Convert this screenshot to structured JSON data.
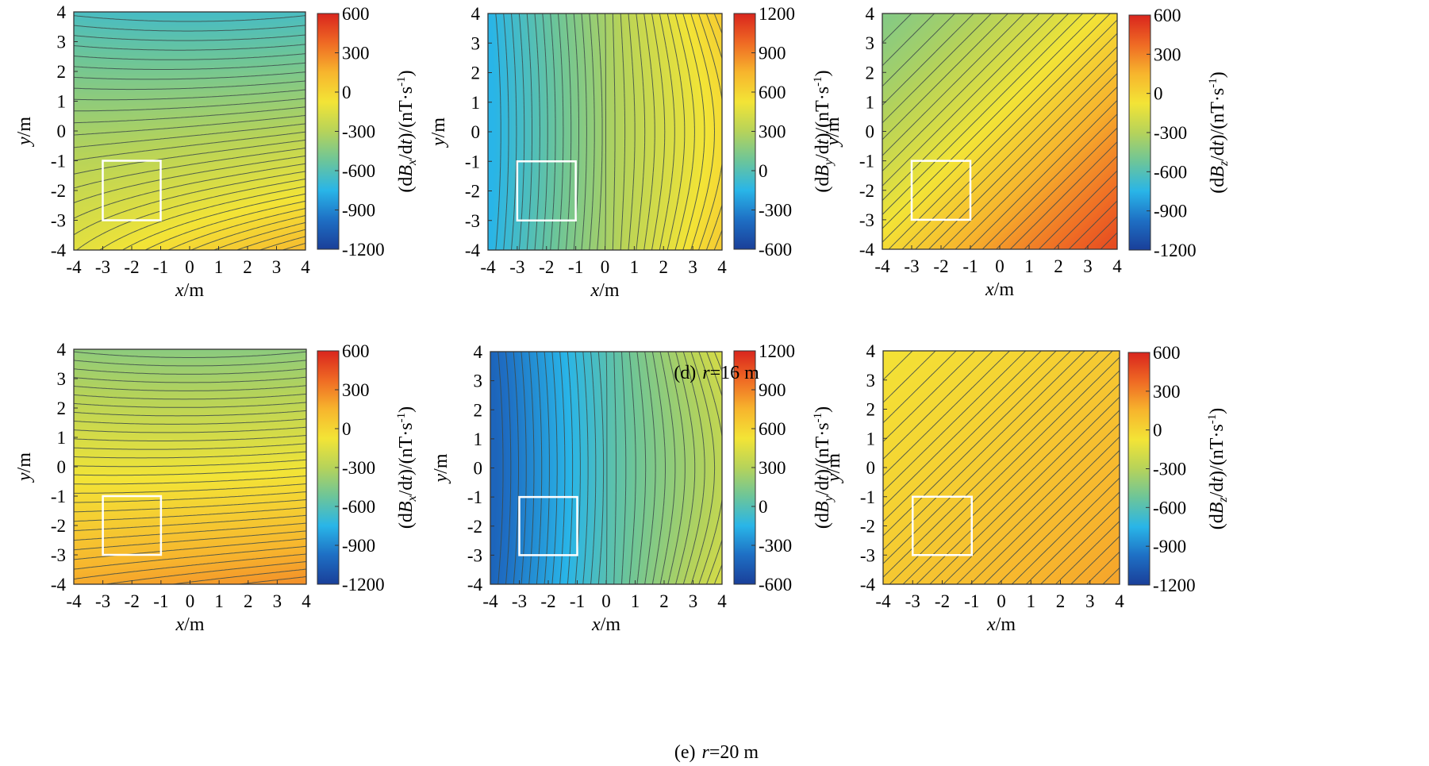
{
  "chart_data": [
    {
      "id": "d-x",
      "type": "heatmap",
      "xlabel": "x/m",
      "ylabel": "y/m",
      "xlim": [
        -4,
        4
      ],
      "ylim": [
        -4,
        4
      ],
      "x_ticks": [
        "-4",
        "-3",
        "-2",
        "-1",
        "0",
        "1",
        "2",
        "3",
        "4"
      ],
      "y_ticks": [
        "-4",
        "-3",
        "-2",
        "-1",
        "0",
        "1",
        "2",
        "3",
        "4"
      ],
      "colorbar": {
        "label": "(dBx/dt)/(nT·s-1)",
        "range": [
          -1200,
          600
        ],
        "ticks": [
          "-1200",
          "-900",
          "-600",
          "-300",
          "0",
          "300",
          "600"
        ]
      },
      "field": {
        "pattern": "horizontal",
        "value_top": -650,
        "value_bottom": -10,
        "value_at_top_left": -560,
        "value_at_bottom_right": 120
      },
      "contours": 30,
      "box": {
        "x": [
          -3,
          -1
        ],
        "y": [
          -3,
          -1
        ]
      }
    },
    {
      "id": "d-y",
      "type": "heatmap",
      "xlabel": "x/m",
      "ylabel": "y/m",
      "xlim": [
        -4,
        4
      ],
      "ylim": [
        -4,
        4
      ],
      "x_ticks": [
        "-4",
        "-3",
        "-2",
        "-1",
        "0",
        "1",
        "2",
        "3",
        "4"
      ],
      "y_ticks": [
        "-4",
        "-3",
        "-2",
        "-1",
        "0",
        "1",
        "2",
        "3",
        "4"
      ],
      "colorbar": {
        "label": "(dBy/dt)/(nT·s-1)",
        "range": [
          -600,
          1200
        ],
        "ticks": [
          "-600",
          "-300",
          "0",
          "300",
          "600",
          "900",
          "1200"
        ]
      },
      "field": {
        "pattern": "vertical-curved",
        "value_left": -150,
        "value_right": 650
      },
      "contours": 30,
      "box": {
        "x": [
          -3,
          -1
        ],
        "y": [
          -3,
          -1
        ]
      }
    },
    {
      "id": "d-z",
      "type": "heatmap",
      "xlabel": "x/m",
      "ylabel": "y/m",
      "xlim": [
        -4,
        4
      ],
      "ylim": [
        -4,
        4
      ],
      "x_ticks": [
        "-4",
        "-3",
        "-2",
        "-1",
        "0",
        "1",
        "2",
        "3",
        "4"
      ],
      "y_ticks": [
        "-4",
        "-3",
        "-2",
        "-1",
        "0",
        "1",
        "2",
        "3",
        "4"
      ],
      "colorbar": {
        "label": "(dBz/dt)/(nT·s-1)",
        "range": [
          -1200,
          600
        ],
        "ticks": [
          "-1200",
          "-900",
          "-600",
          "-300",
          "0",
          "300",
          "600"
        ]
      },
      "field": {
        "pattern": "diagonal",
        "value_top_left": -450,
        "value_bottom_right": 480
      },
      "contours": 30,
      "box": {
        "x": [
          -3,
          -1
        ],
        "y": [
          -3,
          -1
        ]
      }
    },
    {
      "id": "e-x",
      "type": "heatmap",
      "xlabel": "x/m",
      "ylabel": "y/m",
      "xlim": [
        -4,
        4
      ],
      "ylim": [
        -4,
        4
      ],
      "x_ticks": [
        "-4",
        "-3",
        "-2",
        "-1",
        "0",
        "1",
        "2",
        "3",
        "4"
      ],
      "y_ticks": [
        "-4",
        "-3",
        "-2",
        "-1",
        "0",
        "1",
        "2",
        "3",
        "4"
      ],
      "colorbar": {
        "label": "(dBx/dt)/(nT·s-1)",
        "range": [
          -1200,
          600
        ],
        "ticks": [
          "-1200",
          "-900",
          "-600",
          "-300",
          "0",
          "300",
          "600"
        ]
      },
      "field": {
        "pattern": "horizontal",
        "value_top": -430,
        "value_bottom": 220,
        "value_at_top_left": -400,
        "value_at_bottom_right": 260
      },
      "contours": 30,
      "box": {
        "x": [
          -3,
          -1
        ],
        "y": [
          -3,
          -1
        ]
      }
    },
    {
      "id": "e-y",
      "type": "heatmap",
      "xlabel": "x/m",
      "ylabel": "y/m",
      "xlim": [
        -4,
        4
      ],
      "ylim": [
        -4,
        4
      ],
      "x_ticks": [
        "-4",
        "-3",
        "-2",
        "-1",
        "0",
        "1",
        "2",
        "3",
        "4"
      ],
      "y_ticks": [
        "-4",
        "-3",
        "-2",
        "-1",
        "0",
        "1",
        "2",
        "3",
        "4"
      ],
      "colorbar": {
        "label": "(dBy/dt)/(nT·s-1)",
        "range": [
          -600,
          1200
        ],
        "ticks": [
          "-600",
          "-300",
          "0",
          "300",
          "600",
          "900",
          "1200"
        ]
      },
      "field": {
        "pattern": "vertical-curved",
        "value_left": -420,
        "value_right": 420
      },
      "contours": 30,
      "box": {
        "x": [
          -3,
          -1
        ],
        "y": [
          -3,
          -1
        ]
      }
    },
    {
      "id": "e-z",
      "type": "heatmap",
      "xlabel": "x/m",
      "ylabel": "y/m",
      "xlim": [
        -4,
        4
      ],
      "ylim": [
        -4,
        4
      ],
      "x_ticks": [
        "-4",
        "-3",
        "-2",
        "-1",
        "0",
        "1",
        "2",
        "3",
        "4"
      ],
      "y_ticks": [
        "-4",
        "-3",
        "-2",
        "-1",
        "0",
        "1",
        "2",
        "3",
        "4"
      ],
      "colorbar": {
        "label": "(dBz/dt)/(nT·s-1)",
        "range": [
          -1200,
          600
        ],
        "ticks": [
          "-1200",
          "-900",
          "-600",
          "-300",
          "0",
          "300",
          "600"
        ]
      },
      "field": {
        "pattern": "diagonal",
        "value_top_left": -60,
        "value_bottom_right": 200
      },
      "contours": 30,
      "box": {
        "x": [
          -3,
          -1
        ],
        "y": [
          -3,
          -1
        ]
      }
    }
  ],
  "captions": {
    "d": {
      "prefix": "(d)",
      "var": "r",
      "text": "=16 m"
    },
    "e": {
      "prefix": "(e)",
      "var": "r",
      "text": "=20 m"
    }
  },
  "colors": {
    "scale": [
      "#1a3f99",
      "#1e6fc4",
      "#29b5e8",
      "#6cc59a",
      "#b6d35a",
      "#f3e436",
      "#f7b52d",
      "#ef6a24",
      "#d9251d"
    ],
    "contour": "#3c4a4a",
    "box": "#ffffff"
  }
}
